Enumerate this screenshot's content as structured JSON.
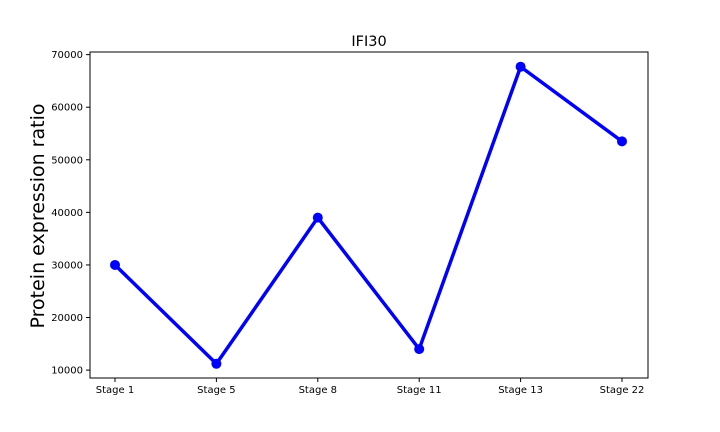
{
  "chart_data": {
    "type": "line",
    "title": "IFI30",
    "xlabel": "",
    "ylabel": "Protein expression ratio",
    "categories": [
      "Stage 1",
      "Stage 5",
      "Stage 8",
      "Stage 11",
      "Stage 13",
      "Stage 22"
    ],
    "series": [
      {
        "values": [
          30000,
          11200,
          39000,
          14000,
          67700,
          53500
        ]
      }
    ],
    "yticks": [
      "10000",
      "20000",
      "30000",
      "40000",
      "50000",
      "60000",
      "70000"
    ],
    "ylim": [
      8500,
      70500
    ],
    "grid": false,
    "legend": "none",
    "line_color": "#0000ff",
    "marker_color": "#0000ff"
  }
}
